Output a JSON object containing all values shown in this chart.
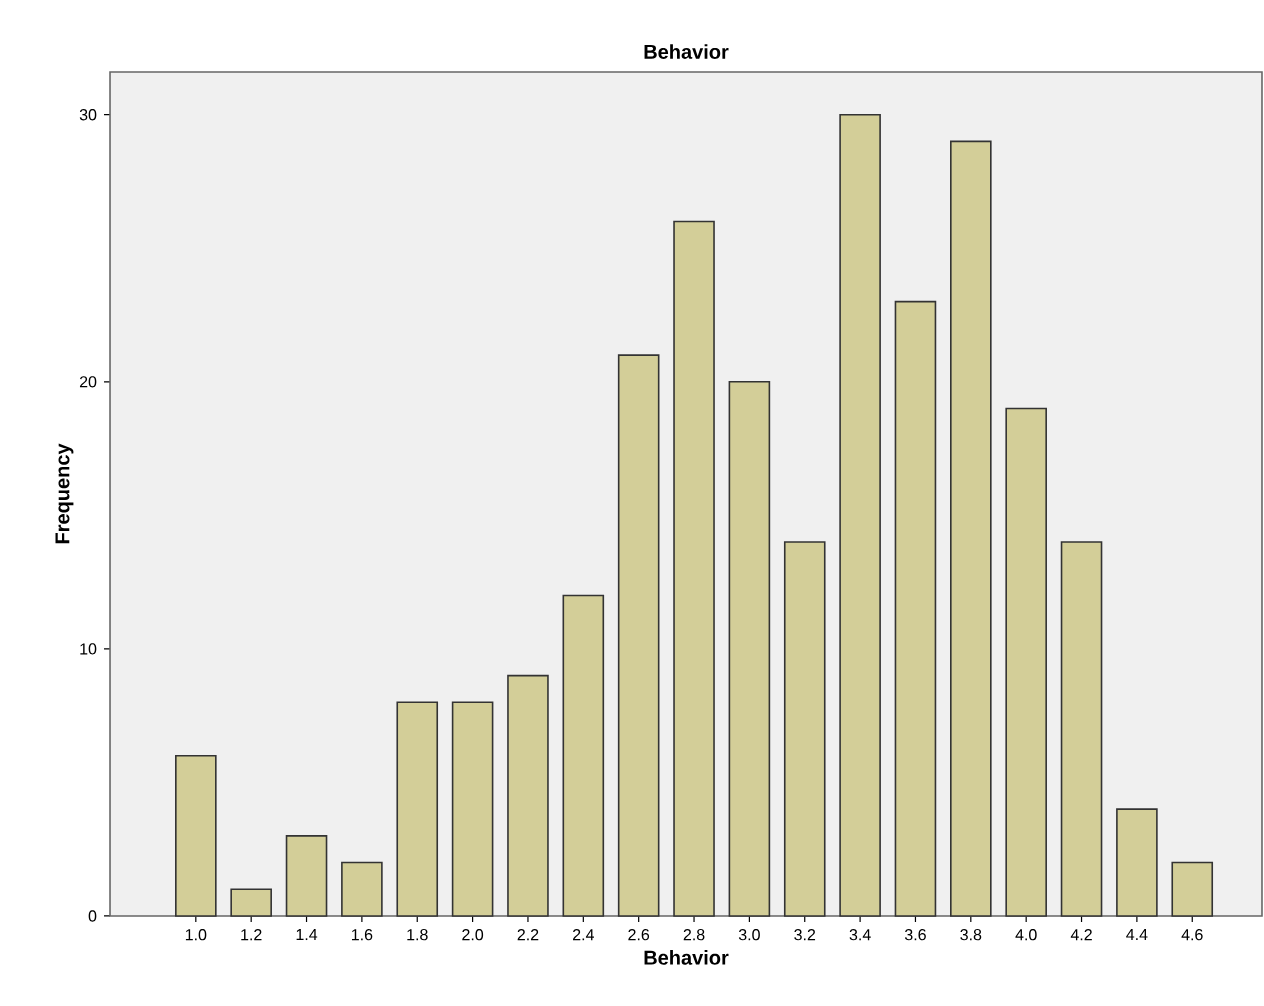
{
  "chart_data": {
    "type": "bar",
    "title": "Behavior",
    "xlabel": "Behavior",
    "ylabel": "Frequency",
    "categories": [
      "1.0",
      "1.2",
      "1.4",
      "1.6",
      "1.8",
      "2.0",
      "2.2",
      "2.4",
      "2.6",
      "2.8",
      "3.0",
      "3.2",
      "3.4",
      "3.6",
      "3.8",
      "4.0",
      "4.2",
      "4.4",
      "4.6"
    ],
    "values": [
      6,
      1,
      3,
      2,
      8,
      8,
      9,
      12,
      21,
      26,
      20,
      14,
      30,
      23,
      29,
      19,
      14,
      4,
      2
    ],
    "color": "#d3ce98",
    "ylim": [
      0,
      31.6
    ],
    "yticks": [
      0,
      10,
      20,
      30
    ]
  }
}
